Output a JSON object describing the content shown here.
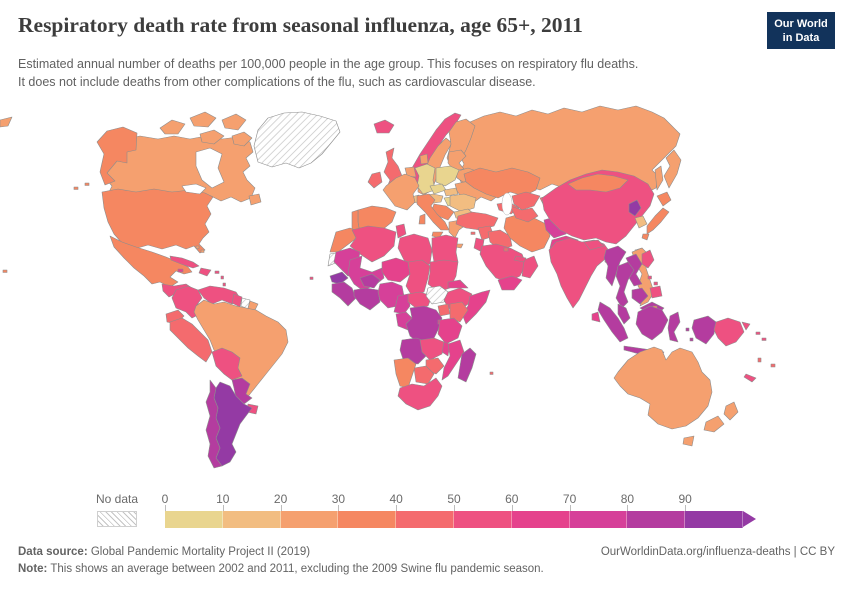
{
  "header": {
    "title": "Respiratory death rate from seasonal influenza, age 65+, 2011",
    "subtitle_line1": "Estimated annual number of deaths per 100,000 people in the age group. This focuses on respiratory flu deaths.",
    "subtitle_line2": "It does not include deaths from other complications of the flu, such as cardiovascular disease.",
    "logo": {
      "line1": "Our World",
      "line2": "in Data",
      "bg_color": "#12335b",
      "accent_color": "#dc352c"
    }
  },
  "legend": {
    "no_data_label": "No data",
    "tick_labels": [
      "0",
      "10",
      "20",
      "30",
      "40",
      "50",
      "60",
      "70",
      "80",
      "90"
    ],
    "bins": [
      {
        "range": "0-10",
        "color": "#e9d58f"
      },
      {
        "range": "10-20",
        "color": "#f2bd81"
      },
      {
        "range": "20-30",
        "color": "#f5a06f"
      },
      {
        "range": "30-40",
        "color": "#f58761"
      },
      {
        "range": "40-50",
        "color": "#f46b6e"
      },
      {
        "range": "50-60",
        "color": "#ee5181"
      },
      {
        "range": "60-70",
        "color": "#e5428c"
      },
      {
        "range": "70-80",
        "color": "#d64099"
      },
      {
        "range": "80-90",
        "color": "#b43c9f"
      },
      {
        "range": "90+",
        "color": "#943aa4"
      }
    ]
  },
  "footer": {
    "source_label": "Data source:",
    "source_text": " Global Pandemic Mortality Project II (2019)",
    "link_text": "OurWorldinData.org/influenza-deaths | CC BY",
    "note_label": "Note:",
    "note_text": " This shows an average between 2002 and 2011, excluding the 2009 Swine flu pandemic season."
  },
  "map": {
    "border_color": "#8d8d8d",
    "countries": [
      {
        "id": "russia",
        "bin": 2
      },
      {
        "id": "canada",
        "bin": 2
      },
      {
        "id": "greenland",
        "bin": null
      },
      {
        "id": "usa",
        "bin": 3
      },
      {
        "id": "mexico",
        "bin": 3
      },
      {
        "id": "guatemala",
        "bin": 5
      },
      {
        "id": "honduras",
        "bin": 5
      },
      {
        "id": "panama",
        "bin": 5
      },
      {
        "id": "cuba",
        "bin": 5
      },
      {
        "id": "haiti",
        "bin": 5
      },
      {
        "id": "jamaica",
        "bin": 6
      },
      {
        "id": "puerto-rico",
        "bin": 5
      },
      {
        "id": "lesser-antilles",
        "bin": 5
      },
      {
        "id": "trinidad-and-tobago",
        "bin": 5
      },
      {
        "id": "bahamas",
        "bin": 2
      },
      {
        "id": "colombia",
        "bin": 5
      },
      {
        "id": "venezuela",
        "bin": 5
      },
      {
        "id": "guyana",
        "bin": 5
      },
      {
        "id": "suriname",
        "bin": null
      },
      {
        "id": "french-guiana",
        "bin": 2
      },
      {
        "id": "ecuador",
        "bin": 4
      },
      {
        "id": "peru",
        "bin": 4
      },
      {
        "id": "brazil",
        "bin": 2
      },
      {
        "id": "bolivia",
        "bin": 5
      },
      {
        "id": "paraguay",
        "bin": 8
      },
      {
        "id": "uruguay",
        "bin": 5
      },
      {
        "id": "chile",
        "bin": 8
      },
      {
        "id": "argentina",
        "bin": 9
      },
      {
        "id": "iceland",
        "bin": 5
      },
      {
        "id": "ireland",
        "bin": 4
      },
      {
        "id": "united-kingdom",
        "bin": 4
      },
      {
        "id": "portugal",
        "bin": 3
      },
      {
        "id": "spain",
        "bin": 3
      },
      {
        "id": "france",
        "bin": 2
      },
      {
        "id": "netherlands",
        "bin": 2
      },
      {
        "id": "germany",
        "bin": 0
      },
      {
        "id": "denmark",
        "bin": 2
      },
      {
        "id": "norway",
        "bin": 5
      },
      {
        "id": "sweden",
        "bin": 2
      },
      {
        "id": "finland",
        "bin": 2
      },
      {
        "id": "baltic-states",
        "bin": 2
      },
      {
        "id": "belarus",
        "bin": 2
      },
      {
        "id": "ukraine",
        "bin": 2
      },
      {
        "id": "poland",
        "bin": 0
      },
      {
        "id": "czechia",
        "bin": 0
      },
      {
        "id": "slovakia",
        "bin": 1
      },
      {
        "id": "austria",
        "bin": 1
      },
      {
        "id": "switzerland",
        "bin": 1
      },
      {
        "id": "hungary",
        "bin": 0
      },
      {
        "id": "romania",
        "bin": 1
      },
      {
        "id": "bulgaria",
        "bin": 1
      },
      {
        "id": "serbia",
        "bin": 3
      },
      {
        "id": "greece",
        "bin": 2
      },
      {
        "id": "italy",
        "bin": 3
      },
      {
        "id": "turkey",
        "bin": 4
      },
      {
        "id": "caucasus",
        "bin": 4
      },
      {
        "id": "cyprus",
        "bin": 4
      },
      {
        "id": "syria",
        "bin": 4
      },
      {
        "id": "iraq",
        "bin": 4
      },
      {
        "id": "jordan",
        "bin": 5
      },
      {
        "id": "saudi-arabia",
        "bin": 5
      },
      {
        "id": "yemen",
        "bin": 6
      },
      {
        "id": "oman",
        "bin": 5
      },
      {
        "id": "uae",
        "bin": 5
      },
      {
        "id": "kuwait",
        "bin": 4
      },
      {
        "id": "iran",
        "bin": 3
      },
      {
        "id": "kazakhstan",
        "bin": 3
      },
      {
        "id": "uzbekistan",
        "bin": 4
      },
      {
        "id": "turkmenistan",
        "bin": 4
      },
      {
        "id": "kyrgyzstan",
        "bin": 4
      },
      {
        "id": "afghanistan",
        "bin": 7
      },
      {
        "id": "pakistan",
        "bin": 6
      },
      {
        "id": "india",
        "bin": 5
      },
      {
        "id": "nepal",
        "bin": 5
      },
      {
        "id": "bangladesh",
        "bin": 7
      },
      {
        "id": "sri-lanka",
        "bin": 6
      },
      {
        "id": "china",
        "bin": 5
      },
      {
        "id": "mongolia",
        "bin": 3
      },
      {
        "id": "north-korea",
        "bin": 9
      },
      {
        "id": "south-korea",
        "bin": 1
      },
      {
        "id": "japan",
        "bin": 3
      },
      {
        "id": "taiwan",
        "bin": null
      },
      {
        "id": "myanmar",
        "bin": 8
      },
      {
        "id": "thailand",
        "bin": 8
      },
      {
        "id": "laos",
        "bin": 8
      },
      {
        "id": "vietnam",
        "bin": 2
      },
      {
        "id": "cambodia",
        "bin": 8
      },
      {
        "id": "malaysia",
        "bin": 8
      },
      {
        "id": "brunei",
        "bin": 3
      },
      {
        "id": "indonesia",
        "bin": 8
      },
      {
        "id": "papua-new-guinea",
        "bin": 5
      },
      {
        "id": "solomon-islands",
        "bin": 5
      },
      {
        "id": "vanuatu",
        "bin": 4
      },
      {
        "id": "fiji",
        "bin": 4
      },
      {
        "id": "new-caledonia",
        "bin": 5
      },
      {
        "id": "philippines",
        "bin": 5
      },
      {
        "id": "australia",
        "bin": 2
      },
      {
        "id": "new-zealand",
        "bin": 2
      },
      {
        "id": "morocco",
        "bin": 3
      },
      {
        "id": "western-sahara",
        "bin": null
      },
      {
        "id": "algeria",
        "bin": 5
      },
      {
        "id": "tunisia",
        "bin": 5
      },
      {
        "id": "libya",
        "bin": 5
      },
      {
        "id": "egypt",
        "bin": 5
      },
      {
        "id": "mauritania",
        "bin": 7
      },
      {
        "id": "mali",
        "bin": 7
      },
      {
        "id": "niger",
        "bin": 6
      },
      {
        "id": "chad",
        "bin": 5
      },
      {
        "id": "sudan",
        "bin": 5
      },
      {
        "id": "south-sudan",
        "bin": null
      },
      {
        "id": "senegal",
        "bin": 9
      },
      {
        "id": "guinea",
        "bin": 8
      },
      {
        "id": "burkina-faso",
        "bin": 8
      },
      {
        "id": "ivory-coast",
        "bin": 8
      },
      {
        "id": "nigeria",
        "bin": 7
      },
      {
        "id": "cameroon",
        "bin": 7
      },
      {
        "id": "central-african-republic",
        "bin": 5
      },
      {
        "id": "eritrea",
        "bin": 6
      },
      {
        "id": "ethiopia",
        "bin": 5
      },
      {
        "id": "somalia",
        "bin": 6
      },
      {
        "id": "uganda",
        "bin": 4
      },
      {
        "id": "kenya",
        "bin": 4
      },
      {
        "id": "congo",
        "bin": 7
      },
      {
        "id": "dr-congo",
        "bin": 8
      },
      {
        "id": "rwanda",
        "bin": 6
      },
      {
        "id": "tanzania",
        "bin": 6
      },
      {
        "id": "angola",
        "bin": 8
      },
      {
        "id": "zambia",
        "bin": 5
      },
      {
        "id": "malawi",
        "bin": 6
      },
      {
        "id": "mozambique",
        "bin": 6
      },
      {
        "id": "zimbabwe",
        "bin": 4
      },
      {
        "id": "botswana",
        "bin": 4
      },
      {
        "id": "namibia",
        "bin": 3
      },
      {
        "id": "south-africa",
        "bin": 5
      },
      {
        "id": "madagascar",
        "bin": 8
      },
      {
        "id": "cape-verde",
        "bin": 5
      },
      {
        "id": "mauritius",
        "bin": 4
      }
    ]
  }
}
